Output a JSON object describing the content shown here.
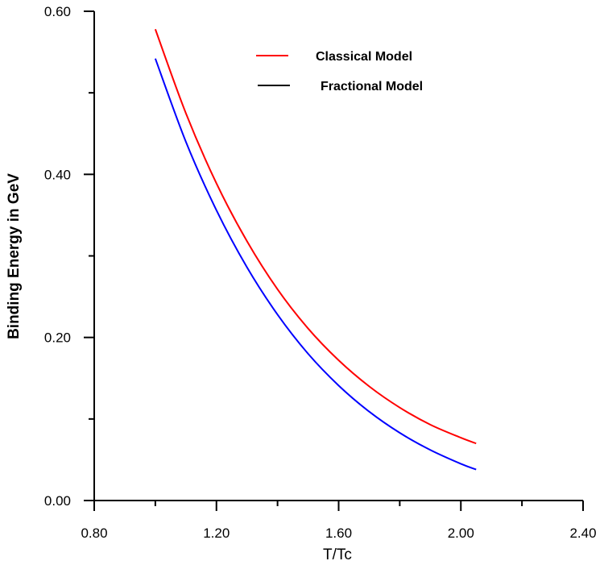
{
  "chart_data": {
    "type": "line",
    "title": "",
    "xlabel": "T/Tc",
    "ylabel": "Binding Energy in GeV",
    "xlim": [
      0.8,
      2.4
    ],
    "ylim": [
      0.0,
      0.6
    ],
    "x_ticks": [
      0.8,
      1.2,
      1.6,
      2.0,
      2.4
    ],
    "x_tick_labels": [
      "0.80",
      "1.20",
      "1.60",
      "2.00",
      "2.40"
    ],
    "y_ticks": [
      0.0,
      0.2,
      0.4,
      0.6
    ],
    "y_tick_labels": [
      "0.00",
      "0.20",
      "0.40",
      "0.60"
    ],
    "grid": false,
    "legend_position": "top-center",
    "series": [
      {
        "name": "Classical Model",
        "legend_swatch_color": "#ff0000",
        "color": "#ff0000",
        "x": [
          1.0,
          1.1,
          1.2,
          1.3,
          1.4,
          1.5,
          1.6,
          1.7,
          1.8,
          1.9,
          2.0,
          2.05
        ],
        "y": [
          0.578,
          0.475,
          0.389,
          0.318,
          0.259,
          0.211,
          0.172,
          0.14,
          0.114,
          0.093,
          0.077,
          0.07
        ]
      },
      {
        "name": "Fractional Model",
        "legend_swatch_color": "#000000",
        "color": "#0000ff",
        "x": [
          1.0,
          1.1,
          1.2,
          1.3,
          1.4,
          1.5,
          1.6,
          1.7,
          1.8,
          1.9,
          2.0,
          2.05
        ],
        "y": [
          0.542,
          0.44,
          0.356,
          0.286,
          0.228,
          0.18,
          0.141,
          0.109,
          0.083,
          0.062,
          0.045,
          0.038
        ]
      }
    ]
  }
}
